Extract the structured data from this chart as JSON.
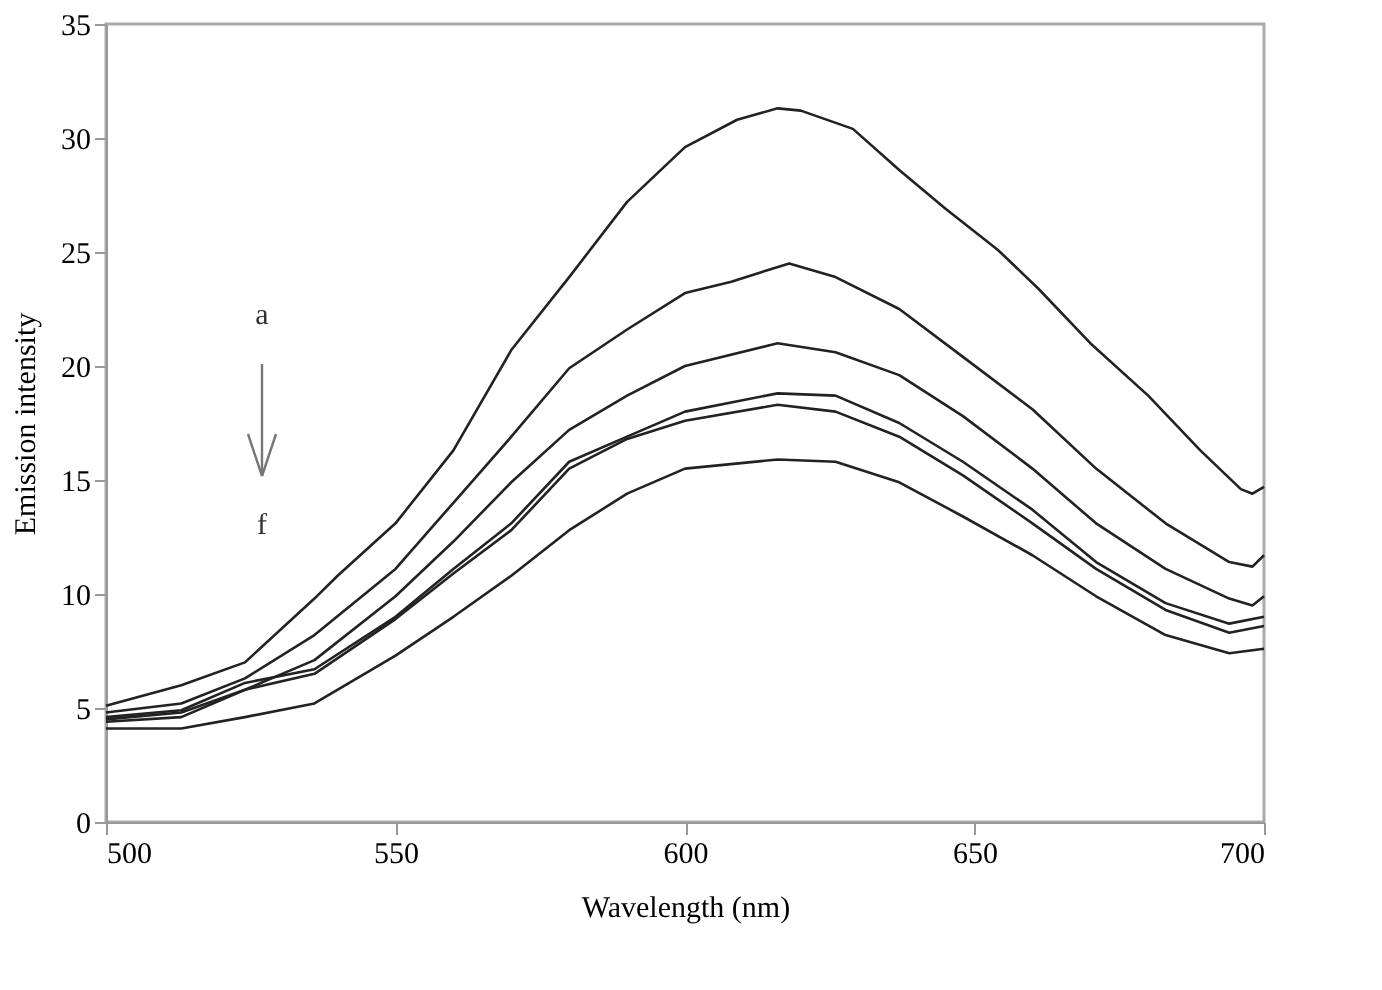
{
  "chart_data": {
    "type": "line",
    "xlabel": "Wavelength (nm)",
    "ylabel": "Emission intensity",
    "xlim": [
      500,
      700
    ],
    "xticks": [
      500,
      550,
      600,
      650,
      700
    ],
    "ylim": [
      0,
      35
    ],
    "yticks": [
      0,
      5,
      10,
      15,
      20,
      25,
      30,
      35
    ],
    "grid": false,
    "marker": "none",
    "line_style": "solid",
    "annotations": [
      "a",
      "f"
    ],
    "series": [
      {
        "color": "#222222",
        "x": [
          500,
          513,
          524,
          536,
          540,
          550,
          560,
          570,
          580,
          590,
          600,
          609,
          616,
          620,
          629,
          637,
          645,
          654,
          661,
          670,
          680,
          689,
          696,
          698,
          700
        ],
        "values": [
          5.1,
          6.0,
          7.0,
          9.8,
          10.8,
          13.1,
          16.3,
          20.7,
          23.9,
          27.2,
          29.6,
          30.8,
          31.3,
          31.2,
          30.4,
          28.6,
          26.9,
          25.1,
          23.4,
          21.0,
          18.7,
          16.3,
          14.6,
          14.4,
          14.7
        ]
      },
      {
        "color": "#222222",
        "x": [
          500,
          513,
          524,
          536,
          550,
          560,
          570,
          580,
          590,
          600,
          608,
          618,
          626,
          637,
          648,
          660,
          671,
          683,
          694,
          698,
          700
        ],
        "values": [
          4.8,
          5.2,
          6.3,
          8.2,
          11.1,
          14.0,
          16.9,
          19.9,
          21.6,
          23.2,
          23.7,
          24.5,
          23.9,
          22.5,
          20.4,
          18.1,
          15.5,
          13.1,
          11.4,
          11.2,
          11.7
        ]
      },
      {
        "color": "#222222",
        "x": [
          500,
          513,
          524,
          536,
          550,
          560,
          570,
          580,
          590,
          600,
          616,
          626,
          637,
          648,
          660,
          671,
          683,
          694,
          698,
          700
        ],
        "values": [
          4.5,
          4.8,
          5.8,
          7.1,
          9.9,
          12.3,
          14.9,
          17.2,
          18.7,
          20.0,
          21.0,
          20.6,
          19.6,
          17.8,
          15.5,
          13.1,
          11.1,
          9.8,
          9.5,
          9.9
        ]
      },
      {
        "color": "#222222",
        "x": [
          500,
          513,
          524,
          536,
          550,
          560,
          570,
          580,
          590,
          600,
          616,
          626,
          637,
          648,
          660,
          671,
          683,
          694,
          700
        ],
        "values": [
          4.6,
          4.9,
          6.1,
          6.7,
          9.0,
          11.1,
          13.1,
          15.8,
          16.9,
          18.0,
          18.8,
          18.7,
          17.5,
          15.8,
          13.7,
          11.4,
          9.6,
          8.7,
          9.0
        ]
      },
      {
        "color": "#222222",
        "x": [
          500,
          513,
          524,
          536,
          550,
          560,
          570,
          580,
          590,
          600,
          616,
          626,
          637,
          648,
          660,
          671,
          683,
          694,
          700
        ],
        "values": [
          4.4,
          4.6,
          5.8,
          6.5,
          8.9,
          10.9,
          12.8,
          15.5,
          16.8,
          17.6,
          18.3,
          18.0,
          16.9,
          15.2,
          13.1,
          11.1,
          9.3,
          8.3,
          8.6
        ]
      },
      {
        "color": "#222222",
        "x": [
          500,
          513,
          524,
          536,
          550,
          560,
          570,
          580,
          590,
          600,
          616,
          626,
          637,
          648,
          660,
          671,
          683,
          694,
          700
        ],
        "values": [
          4.1,
          4.1,
          4.6,
          5.2,
          7.3,
          9.0,
          10.8,
          12.8,
          14.4,
          15.5,
          15.9,
          15.8,
          14.9,
          13.4,
          11.7,
          9.9,
          8.2,
          7.4,
          7.6
        ]
      }
    ]
  }
}
